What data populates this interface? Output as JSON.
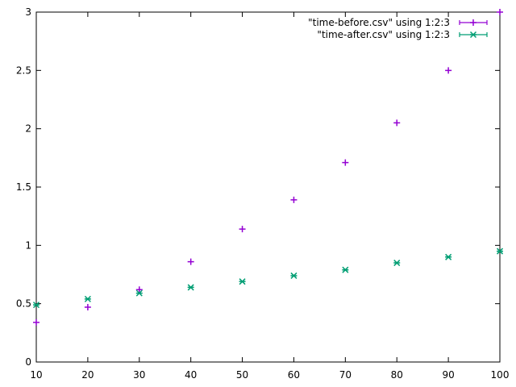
{
  "chart_data": {
    "type": "scatter",
    "title": "",
    "xlabel": "",
    "ylabel": "",
    "xlim": [
      10,
      100
    ],
    "ylim": [
      0,
      3
    ],
    "xticks": [
      10,
      20,
      30,
      40,
      50,
      60,
      70,
      80,
      90,
      100
    ],
    "yticks": [
      0,
      0.5,
      1,
      1.5,
      2,
      2.5,
      3
    ],
    "xtick_labels": [
      "10",
      "20",
      "30",
      "40",
      "50",
      "60",
      "70",
      "80",
      "90",
      "100"
    ],
    "ytick_labels": [
      "0",
      "0.5",
      "1",
      "1.5",
      "2",
      "2.5",
      "3"
    ],
    "grid": false,
    "legend_position": "top-right",
    "x": [
      10,
      20,
      30,
      40,
      50,
      60,
      70,
      80,
      90,
      100
    ],
    "series": [
      {
        "name": "\"time-before.csv\" using 1:2:3",
        "color": "#9400d3",
        "marker": "plus",
        "values": [
          0.34,
          0.47,
          0.62,
          0.86,
          1.14,
          1.39,
          1.71,
          2.05,
          2.5,
          3.0
        ]
      },
      {
        "name": "\"time-after.csv\" using 1:2:3",
        "color": "#009e73",
        "marker": "cross",
        "values": [
          0.49,
          0.54,
          0.59,
          0.64,
          0.69,
          0.74,
          0.79,
          0.85,
          0.9,
          0.95
        ]
      }
    ]
  }
}
